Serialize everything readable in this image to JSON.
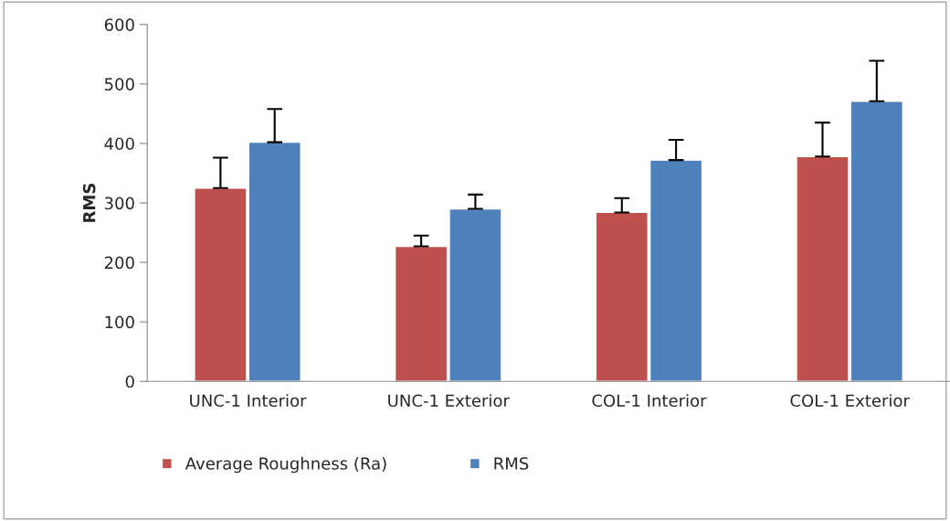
{
  "chart_data": {
    "type": "bar",
    "ylabel": "RMS",
    "categories": [
      "UNC-1 Interior",
      "UNC-1 Exterior",
      "COL-1 Interior",
      "COL-1 Exterior"
    ],
    "series": [
      {
        "name": "Average Roughness (Ra)",
        "color": "#c0504d",
        "values": [
          325,
          227,
          284,
          378
        ],
        "errors": [
          [
            325,
            376
          ],
          [
            227,
            245
          ],
          [
            284,
            308
          ],
          [
            378,
            435
          ]
        ]
      },
      {
        "name": "RMS",
        "color": "#4f81bd",
        "values": [
          402,
          290,
          372,
          471
        ],
        "errors": [
          [
            402,
            458
          ],
          [
            290,
            314
          ],
          [
            372,
            406
          ],
          [
            471,
            539
          ]
        ]
      }
    ],
    "ylim": [
      0,
      600
    ],
    "yticks": [
      0,
      100,
      200,
      300,
      400,
      500,
      600
    ],
    "grid": false,
    "legend": "bottom"
  }
}
